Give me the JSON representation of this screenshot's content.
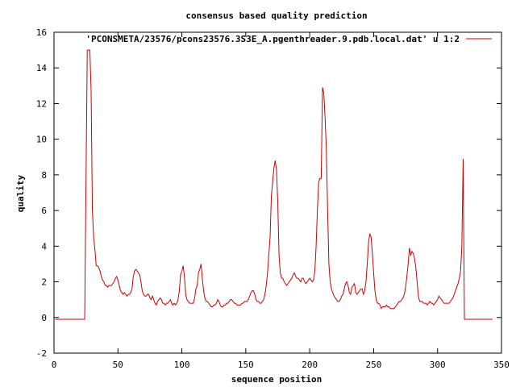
{
  "chart_data": {
    "type": "line",
    "title": "consensus based quality prediction",
    "xlabel": "sequence position",
    "ylabel": "quality",
    "xlim": [
      0,
      350
    ],
    "ylim": [
      -2,
      16
    ],
    "xticks": [
      0,
      50,
      100,
      150,
      200,
      250,
      300,
      350
    ],
    "yticks": [
      -2,
      0,
      2,
      4,
      6,
      8,
      10,
      12,
      14,
      16
    ],
    "grid": false,
    "legend_position": "top-right",
    "series": [
      {
        "name": "'PCONSMETA/23576/pcons23576.3S3E_A.pgenthreader.9.pdb.local.dat' u 1:2",
        "color": "#cc0000",
        "points": [
          [
            1,
            -0.1
          ],
          [
            24,
            -0.1
          ],
          [
            25,
            7.5
          ],
          [
            26,
            15
          ],
          [
            27,
            15
          ],
          [
            28,
            15
          ],
          [
            29,
            12.8
          ],
          [
            30,
            6
          ],
          [
            31,
            4.5
          ],
          [
            32,
            3.8
          ],
          [
            33,
            2.9
          ],
          [
            34,
            2.9
          ],
          [
            35,
            2.8
          ],
          [
            36,
            2.6
          ],
          [
            37,
            2.3
          ],
          [
            38,
            2.1
          ],
          [
            39,
            2.0
          ],
          [
            40,
            1.8
          ],
          [
            41,
            1.8
          ],
          [
            42,
            1.7
          ],
          [
            43,
            1.8
          ],
          [
            44,
            1.8
          ],
          [
            45,
            1.8
          ],
          [
            46,
            1.9
          ],
          [
            47,
            2.0
          ],
          [
            48,
            2.2
          ],
          [
            49,
            2.3
          ],
          [
            50,
            2.1
          ],
          [
            51,
            1.8
          ],
          [
            52,
            1.5
          ],
          [
            53,
            1.4
          ],
          [
            54,
            1.3
          ],
          [
            55,
            1.4
          ],
          [
            56,
            1.3
          ],
          [
            57,
            1.2
          ],
          [
            58,
            1.3
          ],
          [
            59,
            1.3
          ],
          [
            60,
            1.4
          ],
          [
            61,
            1.6
          ],
          [
            62,
            2.3
          ],
          [
            63,
            2.6
          ],
          [
            64,
            2.7
          ],
          [
            65,
            2.6
          ],
          [
            66,
            2.5
          ],
          [
            67,
            2.4
          ],
          [
            68,
            2.0
          ],
          [
            69,
            1.5
          ],
          [
            70,
            1.3
          ],
          [
            71,
            1.2
          ],
          [
            72,
            1.2
          ],
          [
            73,
            1.3
          ],
          [
            74,
            1.3
          ],
          [
            75,
            1.1
          ],
          [
            76,
            1.0
          ],
          [
            77,
            1.2
          ],
          [
            78,
            1.0
          ],
          [
            79,
            0.8
          ],
          [
            80,
            0.7
          ],
          [
            81,
            0.9
          ],
          [
            82,
            1.0
          ],
          [
            83,
            1.1
          ],
          [
            84,
            1.0
          ],
          [
            85,
            0.8
          ],
          [
            86,
            0.8
          ],
          [
            87,
            0.7
          ],
          [
            88,
            0.8
          ],
          [
            89,
            0.8
          ],
          [
            90,
            0.9
          ],
          [
            91,
            1.0
          ],
          [
            92,
            0.8
          ],
          [
            93,
            0.7
          ],
          [
            94,
            0.8
          ],
          [
            95,
            0.7
          ],
          [
            96,
            0.8
          ],
          [
            97,
            1.0
          ],
          [
            98,
            1.5
          ],
          [
            99,
            2.4
          ],
          [
            100,
            2.6
          ],
          [
            101,
            2.9
          ],
          [
            102,
            2.3
          ],
          [
            103,
            1.3
          ],
          [
            104,
            1.0
          ],
          [
            105,
            0.9
          ],
          [
            106,
            0.8
          ],
          [
            107,
            0.8
          ],
          [
            108,
            0.8
          ],
          [
            109,
            0.8
          ],
          [
            110,
            1.1
          ],
          [
            111,
            1.6
          ],
          [
            112,
            1.8
          ],
          [
            113,
            2.5
          ],
          [
            114,
            2.7
          ],
          [
            115,
            3.0
          ],
          [
            116,
            2.2
          ],
          [
            117,
            1.5
          ],
          [
            118,
            1.1
          ],
          [
            119,
            0.9
          ],
          [
            120,
            0.9
          ],
          [
            121,
            0.8
          ],
          [
            122,
            0.7
          ],
          [
            123,
            0.6
          ],
          [
            124,
            0.6
          ],
          [
            125,
            0.7
          ],
          [
            126,
            0.7
          ],
          [
            127,
            0.8
          ],
          [
            128,
            1.0
          ],
          [
            129,
            0.9
          ],
          [
            130,
            0.7
          ],
          [
            131,
            0.6
          ],
          [
            132,
            0.6
          ],
          [
            133,
            0.7
          ],
          [
            134,
            0.7
          ],
          [
            135,
            0.8
          ],
          [
            136,
            0.8
          ],
          [
            137,
            0.9
          ],
          [
            138,
            1.0
          ],
          [
            139,
            1.0
          ],
          [
            140,
            0.9
          ],
          [
            141,
            0.8
          ],
          [
            142,
            0.8
          ],
          [
            143,
            0.7
          ],
          [
            144,
            0.7
          ],
          [
            145,
            0.7
          ],
          [
            146,
            0.7
          ],
          [
            147,
            0.8
          ],
          [
            148,
            0.8
          ],
          [
            149,
            0.9
          ],
          [
            150,
            0.9
          ],
          [
            151,
            0.9
          ],
          [
            152,
            1.0
          ],
          [
            153,
            1.2
          ],
          [
            154,
            1.4
          ],
          [
            155,
            1.5
          ],
          [
            156,
            1.5
          ],
          [
            157,
            1.3
          ],
          [
            158,
            1.0
          ],
          [
            159,
            0.9
          ],
          [
            160,
            0.9
          ],
          [
            161,
            0.8
          ],
          [
            162,
            0.8
          ],
          [
            163,
            0.9
          ],
          [
            164,
            1.0
          ],
          [
            165,
            1.3
          ],
          [
            166,
            1.8
          ],
          [
            167,
            2.5
          ],
          [
            168,
            3.5
          ],
          [
            169,
            4.5
          ],
          [
            170,
            6.8
          ],
          [
            171,
            7.6
          ],
          [
            172,
            8.4
          ],
          [
            173,
            8.8
          ],
          [
            174,
            8.3
          ],
          [
            175,
            6.5
          ],
          [
            176,
            3.5
          ],
          [
            177,
            2.5
          ],
          [
            178,
            2.2
          ],
          [
            179,
            2.2
          ],
          [
            180,
            2.0
          ],
          [
            181,
            1.9
          ],
          [
            182,
            1.8
          ],
          [
            183,
            1.9
          ],
          [
            184,
            2.0
          ],
          [
            185,
            2.1
          ],
          [
            186,
            2.2
          ],
          [
            187,
            2.4
          ],
          [
            188,
            2.5
          ],
          [
            189,
            2.3
          ],
          [
            190,
            2.2
          ],
          [
            191,
            2.2
          ],
          [
            192,
            2.1
          ],
          [
            193,
            2.0
          ],
          [
            194,
            2.2
          ],
          [
            195,
            2.2
          ],
          [
            196,
            2.0
          ],
          [
            197,
            1.9
          ],
          [
            198,
            2.0
          ],
          [
            199,
            2.1
          ],
          [
            200,
            2.2
          ],
          [
            201,
            2.1
          ],
          [
            202,
            2.0
          ],
          [
            203,
            2.1
          ],
          [
            204,
            2.6
          ],
          [
            205,
            4.0
          ],
          [
            206,
            6.0
          ],
          [
            207,
            7.6
          ],
          [
            208,
            7.8
          ],
          [
            209,
            7.8
          ],
          [
            210,
            12.9
          ],
          [
            211,
            12.6
          ],
          [
            212,
            11.2
          ],
          [
            213,
            9.5
          ],
          [
            214,
            6.0
          ],
          [
            215,
            3.0
          ],
          [
            216,
            2.0
          ],
          [
            217,
            1.6
          ],
          [
            218,
            1.4
          ],
          [
            219,
            1.2
          ],
          [
            220,
            1.1
          ],
          [
            221,
            1.0
          ],
          [
            222,
            0.9
          ],
          [
            223,
            0.9
          ],
          [
            224,
            1.0
          ],
          [
            225,
            1.2
          ],
          [
            226,
            1.3
          ],
          [
            227,
            1.6
          ],
          [
            228,
            1.9
          ],
          [
            229,
            2.0
          ],
          [
            230,
            1.8
          ],
          [
            231,
            1.4
          ],
          [
            232,
            1.3
          ],
          [
            233,
            1.7
          ],
          [
            234,
            1.8
          ],
          [
            235,
            1.9
          ],
          [
            236,
            1.4
          ],
          [
            237,
            1.3
          ],
          [
            238,
            1.4
          ],
          [
            239,
            1.5
          ],
          [
            240,
            1.6
          ],
          [
            241,
            1.6
          ],
          [
            242,
            1.3
          ],
          [
            243,
            1.5
          ],
          [
            244,
            2.0
          ],
          [
            245,
            3.0
          ],
          [
            246,
            4.2
          ],
          [
            247,
            4.7
          ],
          [
            248,
            4.5
          ],
          [
            249,
            3.6
          ],
          [
            250,
            2.5
          ],
          [
            251,
            1.5
          ],
          [
            252,
            1.0
          ],
          [
            253,
            0.8
          ],
          [
            254,
            0.8
          ],
          [
            255,
            0.7
          ],
          [
            256,
            0.5
          ],
          [
            257,
            0.6
          ],
          [
            258,
            0.6
          ],
          [
            259,
            0.6
          ],
          [
            260,
            0.7
          ],
          [
            261,
            0.6
          ],
          [
            262,
            0.6
          ],
          [
            263,
            0.5
          ],
          [
            264,
            0.5
          ],
          [
            265,
            0.5
          ],
          [
            266,
            0.5
          ],
          [
            267,
            0.6
          ],
          [
            268,
            0.7
          ],
          [
            269,
            0.8
          ],
          [
            270,
            0.9
          ],
          [
            271,
            0.9
          ],
          [
            272,
            1.0
          ],
          [
            273,
            1.1
          ],
          [
            274,
            1.3
          ],
          [
            275,
            1.7
          ],
          [
            276,
            2.3
          ],
          [
            277,
            3.0
          ],
          [
            278,
            3.9
          ],
          [
            279,
            3.5
          ],
          [
            280,
            3.7
          ],
          [
            281,
            3.6
          ],
          [
            282,
            3.3
          ],
          [
            283,
            2.8
          ],
          [
            284,
            2.0
          ],
          [
            285,
            1.2
          ],
          [
            286,
            0.9
          ],
          [
            287,
            0.9
          ],
          [
            288,
            0.9
          ],
          [
            289,
            0.8
          ],
          [
            290,
            0.8
          ],
          [
            291,
            0.8
          ],
          [
            292,
            0.7
          ],
          [
            293,
            0.8
          ],
          [
            294,
            0.9
          ],
          [
            295,
            0.8
          ],
          [
            296,
            0.8
          ],
          [
            297,
            0.7
          ],
          [
            298,
            0.8
          ],
          [
            299,
            0.9
          ],
          [
            300,
            1.0
          ],
          [
            301,
            1.2
          ],
          [
            302,
            1.1
          ],
          [
            303,
            1.0
          ],
          [
            304,
            0.9
          ],
          [
            305,
            0.8
          ],
          [
            306,
            0.8
          ],
          [
            307,
            0.8
          ],
          [
            308,
            0.8
          ],
          [
            309,
            0.8
          ],
          [
            310,
            0.9
          ],
          [
            311,
            1.0
          ],
          [
            312,
            1.1
          ],
          [
            313,
            1.3
          ],
          [
            314,
            1.5
          ],
          [
            315,
            1.7
          ],
          [
            316,
            1.9
          ],
          [
            317,
            2.2
          ],
          [
            318,
            2.6
          ],
          [
            319,
            4.0
          ],
          [
            320,
            8.9
          ],
          [
            321,
            -0.1
          ],
          [
            322,
            -0.1
          ],
          [
            343,
            -0.1
          ]
        ]
      }
    ]
  }
}
